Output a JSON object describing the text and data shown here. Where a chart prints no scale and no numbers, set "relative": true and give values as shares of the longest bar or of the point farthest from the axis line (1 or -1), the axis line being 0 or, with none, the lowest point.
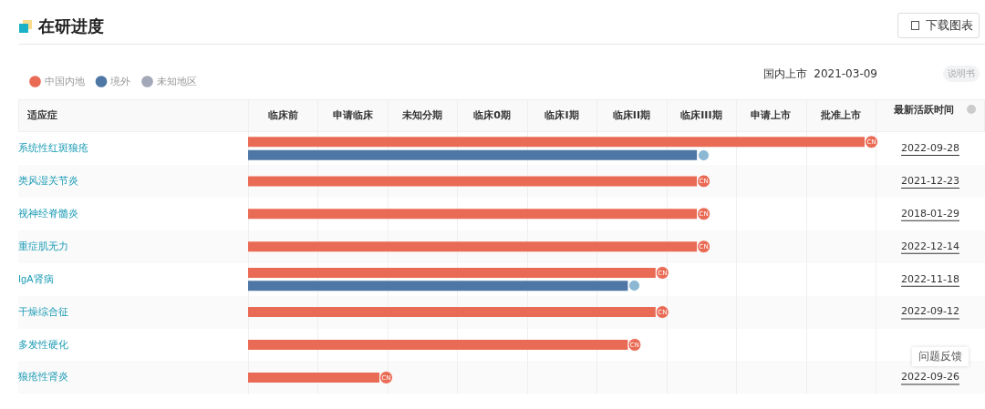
{
  "chart_data": {
    "type": "bar",
    "orientation": "horizontal",
    "title": "在研进度",
    "subtitle": "国内上市  2021-03-09",
    "ylabel": "适应症",
    "categories": [
      "系统性红斑狼疮",
      "类风湿关节炎",
      "视神经脊髓炎",
      "重症肌无力",
      "IgA肾病",
      "干燥综合征",
      "多发性硬化",
      "狼疮性肾炎"
    ],
    "series": [
      {
        "name": "中国内地",
        "color": "#ea6b55",
        "values": [
          1,
          0.728,
          0.728,
          0.728,
          0.661,
          0.661,
          0.616,
          0.213
        ]
      },
      {
        "name": "境外",
        "color": "#4f77a6",
        "values": [
          0.728,
          null,
          null,
          null,
          0.616,
          null,
          null,
          null
        ]
      },
      {
        "name": "未知地区",
        "color": "#a3a9b8",
        "values": [
          null,
          null,
          null,
          null,
          null,
          null,
          null,
          null
        ]
      }
    ],
    "legend": "top left",
    "relative": true,
    "annotations": [
      "下载图表",
      "说明书",
      "问题反馈",
      "最新活跃时间",
      "临床前",
      "申请临床",
      "未知分期",
      "临床0期",
      "临床I期",
      "临床II期",
      "临床III期",
      "申请上市",
      "批准上市",
      "2022-09-28",
      "2021-12-23",
      "2018-01-29",
      "2022-12-14",
      "2022-11-18",
      "2022-09-12",
      "2022-09-26",
      {
        "text": "CN",
        "x": 1,
        "y": "系统性红斑狼疮"
      },
      {
        "text": "CN",
        "x": 0.728,
        "y": "类风湿关节炎"
      },
      {
        "text": "CN",
        "x": 0.728,
        "y": "视神经脊髓炎"
      },
      {
        "text": "CN",
        "x": 0.728,
        "y": "重症肌无力"
      },
      {
        "text": "CN",
        "x": 0.661,
        "y": "IgA肾病"
      },
      {
        "text": "CN",
        "x": 0.661,
        "y": "干燥综合征"
      },
      {
        "text": "CN",
        "x": 0.616,
        "y": "多发性硬化"
      },
      {
        "text": "CN",
        "x": 0.213,
        "y": "狼疮性肾炎"
      }
    ]
  }
}
